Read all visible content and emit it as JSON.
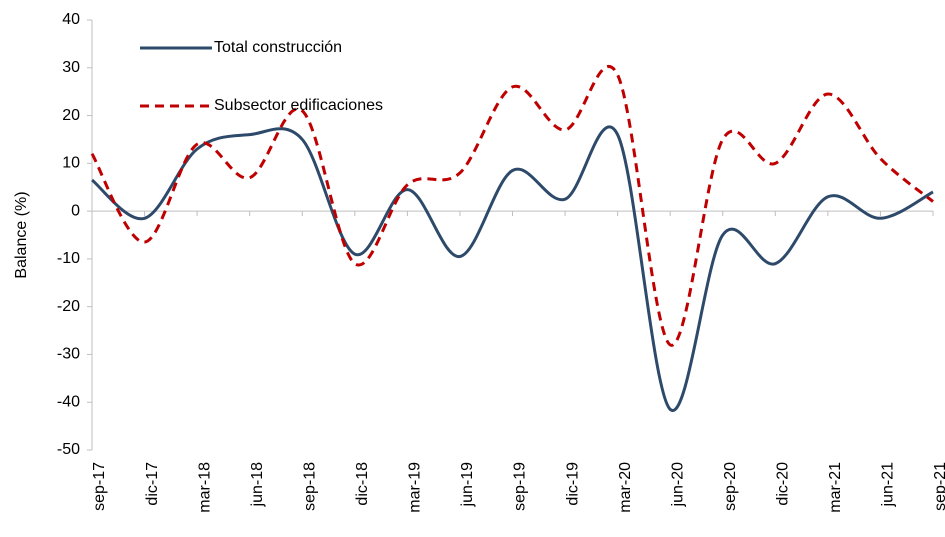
{
  "chart_data": {
    "type": "line",
    "y_label": "Balance (%)",
    "categories": [
      "sep-17",
      "dic-17",
      "mar-18",
      "jun-18",
      "sep-18",
      "dic-18",
      "mar-19",
      "jun-19",
      "sep-19",
      "dic-19",
      "mar-20",
      "jun-20",
      "sep-20",
      "dic-20",
      "mar-21",
      "jun-21",
      "sep-21"
    ],
    "series": [
      {
        "name": "Total construcción",
        "color": "#2e4a6b",
        "dash": "solid",
        "values": [
          6.5,
          -1.5,
          13,
          16,
          15,
          -9,
          4.5,
          -9.5,
          8.5,
          2.5,
          16,
          -41.5,
          -5,
          -11,
          3,
          -1.5,
          4
        ]
      },
      {
        "name": "Subsector edificaciones",
        "color": "#c00000",
        "dash": "dashed",
        "values": [
          12,
          -6.5,
          14,
          7,
          21,
          -11,
          5.5,
          8,
          26,
          17,
          28.5,
          -28,
          15,
          10,
          24.5,
          11,
          2
        ]
      }
    ],
    "ylim": [
      -50,
      40
    ],
    "yticks": [
      -50,
      -40,
      -30,
      -20,
      -10,
      0,
      10,
      20,
      30,
      40
    ],
    "legend": "upper left"
  }
}
